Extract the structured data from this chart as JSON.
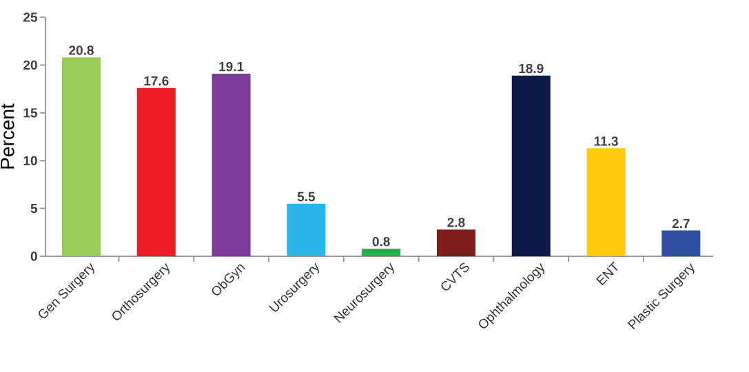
{
  "chart_data": {
    "type": "bar",
    "ylabel": "Percent",
    "categories": [
      "Gen Surgery",
      "Orthosurgery",
      "ObGyn",
      "Urosurgery",
      "Neurosurgery",
      "CVTS",
      "Ophthalmology",
      "ENT",
      "Plastic Surgery"
    ],
    "values": [
      20.8,
      17.6,
      19.1,
      5.5,
      0.8,
      2.8,
      18.9,
      11.3,
      2.7
    ],
    "colors": [
      "#9bcc5a",
      "#ed1c24",
      "#7d3c98",
      "#29b6e8",
      "#22b14c",
      "#7f1d1d",
      "#0d1a45",
      "#ffc90e",
      "#2e4fa3"
    ],
    "value_labels": [
      "20.8",
      "17.6",
      "19.1",
      "5.5",
      "0.8",
      "2.8",
      "18.9",
      "11.3",
      "2.7"
    ],
    "ylim": [
      0,
      25
    ],
    "yticks": [
      0,
      5,
      10,
      15,
      20,
      25
    ]
  }
}
